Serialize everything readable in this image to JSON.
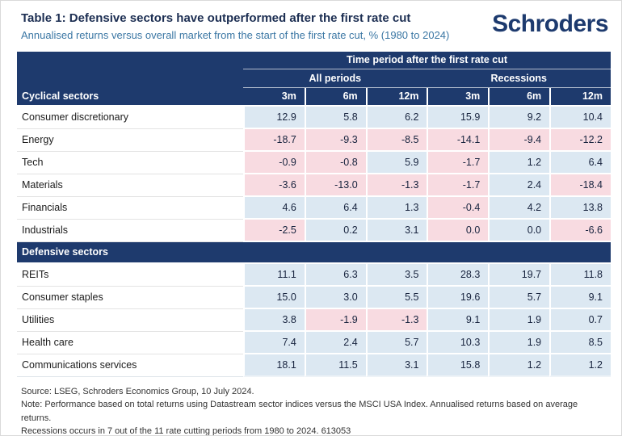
{
  "header": {
    "title": "Table 1: Defensive sectors have outperformed after the first rate cut",
    "subtitle": "Annualised returns versus overall market from the start of the first rate cut, % (1980 to 2024)",
    "logo": "Schroders"
  },
  "colors": {
    "navy_header": "#1e3a6d",
    "outperform_cell_blue": "#dce8f2",
    "underperform_cell_pink": "#f8dbe1",
    "title_text": "#1c2e52",
    "subtitle_text": "#3b77a4"
  },
  "chart_data": {
    "type": "table",
    "title": "Table 1: Defensive sectors have outperformed after the first rate cut",
    "subtitle": "Annualised returns versus overall market from the start of the first rate cut, % (1980 to 2024)",
    "top_header": "Time period after the first rate cut",
    "column_groups": [
      "All periods",
      "Recessions"
    ],
    "columns": [
      "3m",
      "6m",
      "12m",
      "3m",
      "6m",
      "12m"
    ],
    "shading_legend": {
      "pos": "light blue (outperformance)",
      "neg": "light pink (underperformance)"
    },
    "sections": [
      {
        "label": "Cyclical sectors",
        "rows": [
          {
            "sector": "Consumer discretionary",
            "values": [
              12.9,
              5.8,
              6.2,
              15.9,
              9.2,
              10.4
            ],
            "shading": [
              "pos",
              "pos",
              "pos",
              "pos",
              "pos",
              "pos"
            ]
          },
          {
            "sector": "Energy",
            "values": [
              -18.7,
              -9.3,
              -8.5,
              -14.1,
              -9.4,
              -12.2
            ],
            "shading": [
              "neg",
              "neg",
              "neg",
              "neg",
              "neg",
              "neg"
            ]
          },
          {
            "sector": "Tech",
            "values": [
              -0.9,
              -0.8,
              5.9,
              -1.7,
              1.2,
              6.4
            ],
            "shading": [
              "neg",
              "neg",
              "pos",
              "neg",
              "pos",
              "pos"
            ]
          },
          {
            "sector": "Materials",
            "values": [
              -3.6,
              -13.0,
              -1.3,
              -1.7,
              2.4,
              -18.4
            ],
            "shading": [
              "neg",
              "neg",
              "neg",
              "neg",
              "pos",
              "neg"
            ]
          },
          {
            "sector": "Financials",
            "values": [
              4.6,
              6.4,
              1.3,
              -0.4,
              4.2,
              13.8
            ],
            "shading": [
              "pos",
              "pos",
              "pos",
              "neg",
              "pos",
              "pos"
            ]
          },
          {
            "sector": "Industrials",
            "values": [
              -2.5,
              0.2,
              3.1,
              0.0,
              0.0,
              -6.6
            ],
            "shading": [
              "neg",
              "pos",
              "pos",
              "neg",
              "pos",
              "neg"
            ]
          }
        ]
      },
      {
        "label": "Defensive sectors",
        "rows": [
          {
            "sector": "REITs",
            "values": [
              11.1,
              6.3,
              3.5,
              28.3,
              19.7,
              11.8
            ],
            "shading": [
              "pos",
              "pos",
              "pos",
              "pos",
              "pos",
              "pos"
            ]
          },
          {
            "sector": "Consumer staples",
            "values": [
              15.0,
              3.0,
              5.5,
              19.6,
              5.7,
              9.1
            ],
            "shading": [
              "pos",
              "pos",
              "pos",
              "pos",
              "pos",
              "pos"
            ]
          },
          {
            "sector": "Utilities",
            "values": [
              3.8,
              -1.9,
              -1.3,
              9.1,
              1.9,
              0.7
            ],
            "shading": [
              "pos",
              "neg",
              "neg",
              "pos",
              "pos",
              "pos"
            ]
          },
          {
            "sector": "Health care",
            "values": [
              7.4,
              2.4,
              5.7,
              10.3,
              1.9,
              8.5
            ],
            "shading": [
              "pos",
              "pos",
              "pos",
              "pos",
              "pos",
              "pos"
            ]
          },
          {
            "sector": "Communications services",
            "values": [
              18.1,
              11.5,
              3.1,
              15.8,
              1.2,
              1.2
            ],
            "shading": [
              "pos",
              "pos",
              "pos",
              "pos",
              "pos",
              "pos"
            ]
          }
        ]
      }
    ]
  },
  "footer": {
    "source": "Source: LSEG, Schroders Economics Group, 10 July 2024.",
    "note": "Note: Performance based on total returns using Datastream sector indices versus the MSCI USA Index. Annualised returns based on average returns.",
    "recessions": "Recessions occurs in 7 out of the 11 rate cutting periods from 1980 to 2024. 613053"
  }
}
